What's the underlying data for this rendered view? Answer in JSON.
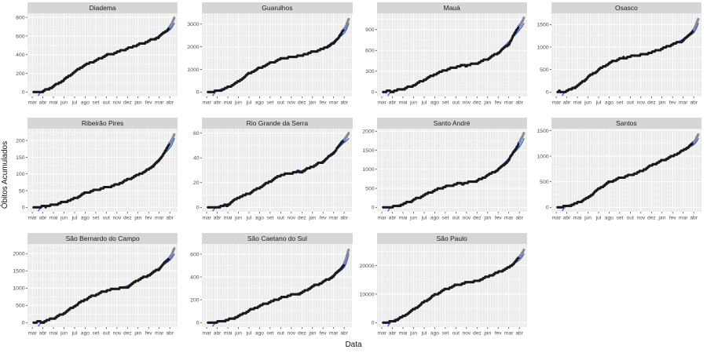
{
  "chart_data": {
    "type": "line",
    "title": "",
    "xlabel": "Data",
    "ylabel": "Óbitos Acumulados",
    "legend": false,
    "grid": true,
    "facet_layout": {
      "rows": 3,
      "cols": 4,
      "order": "row-major",
      "free_y": true
    },
    "x_tick_labels": [
      "mar",
      "abr",
      "mai",
      "jun",
      "jul",
      "ago",
      "set",
      "out",
      "nov",
      "dez",
      "jan",
      "fev",
      "mar",
      "abr"
    ],
    "series_styles": [
      {
        "name": "obitos-acumulados-observados",
        "style": "thick-point-line",
        "color": "#1b1b1b"
      },
      {
        "name": "dados-recentes",
        "style": "thick-point-line",
        "color": "#8a8a8a"
      },
      {
        "name": "tendencia-suavizada",
        "style": "smooth-line",
        "color": "#3366FF"
      }
    ],
    "colors": {
      "panel_bg": "#ebebeb",
      "strip_bg": "#d6d6d6",
      "grid_line": "#ffffff",
      "axis_text": "#4d4d4d",
      "tick_mark": "#333333",
      "points": "#1b1b1b",
      "recent_points": "#8a8a8a",
      "smooth_line": "#3366FF"
    },
    "panels": [
      {
        "name": "Diadema",
        "yticks": [
          0,
          200,
          400,
          600,
          800
        ],
        "values": [
          0,
          5,
          60,
          130,
          215,
          290,
          335,
          395,
          425,
          465,
          505,
          545,
          590,
          690
        ],
        "end_value": 795
      },
      {
        "name": "Guarulhos",
        "yticks": [
          0,
          1000,
          2000,
          3000
        ],
        "values": [
          0,
          30,
          200,
          450,
          820,
          1060,
          1270,
          1450,
          1550,
          1620,
          1760,
          1910,
          2150,
          2750
        ],
        "end_value": 3280
      },
      {
        "name": "Mauá",
        "yticks": [
          0,
          300,
          600,
          900
        ],
        "values": [
          0,
          10,
          45,
          95,
          175,
          255,
          315,
          365,
          385,
          415,
          475,
          565,
          690,
          960
        ],
        "end_value": 1070
      },
      {
        "name": "Osasco",
        "yticks": [
          0,
          500,
          1000,
          1500
        ],
        "values": [
          0,
          20,
          130,
          330,
          490,
          640,
          740,
          790,
          830,
          880,
          960,
          1060,
          1140,
          1380
        ],
        "end_value": 1650
      },
      {
        "name": "Ribeirão Pires",
        "yticks": [
          0,
          50,
          100,
          150,
          200
        ],
        "values": [
          0,
          1,
          8,
          16,
          26,
          43,
          52,
          60,
          68,
          82,
          97,
          113,
          140,
          190
        ],
        "end_value": 222
      },
      {
        "name": "Rio Grande da Serra",
        "yticks": [
          0,
          20,
          40,
          60
        ],
        "values": [
          0,
          0,
          2,
          8,
          11,
          16,
          21,
          26,
          28,
          29,
          33,
          37,
          44,
          55
        ],
        "end_value": 60
      },
      {
        "name": "Santo André",
        "yticks": [
          0,
          500,
          1000,
          1500,
          2000
        ],
        "values": [
          0,
          10,
          80,
          190,
          320,
          440,
          545,
          610,
          640,
          690,
          840,
          990,
          1240,
          1700
        ],
        "end_value": 1950
      },
      {
        "name": "Santos",
        "yticks": [
          0,
          500,
          1000,
          1500
        ],
        "values": [
          0,
          20,
          85,
          185,
          360,
          490,
          570,
          630,
          700,
          820,
          910,
          1000,
          1110,
          1260
        ],
        "end_value": 1450
      },
      {
        "name": "São Bernardo do Campo",
        "yticks": [
          0,
          500,
          1000,
          1500,
          2000
        ],
        "values": [
          0,
          20,
          120,
          270,
          480,
          670,
          810,
          930,
          990,
          1030,
          1240,
          1370,
          1560,
          1890
        ],
        "end_value": 2150
      },
      {
        "name": "São Caetano do Sul",
        "yticks": [
          0,
          200,
          400,
          600
        ],
        "values": [
          0,
          5,
          25,
          55,
          105,
          145,
          180,
          215,
          245,
          260,
          315,
          355,
          405,
          510
        ],
        "end_value": 650
      },
      {
        "name": "São Paulo",
        "yticks": [
          0,
          10000,
          20000
        ],
        "values": [
          0,
          300,
          2100,
          4600,
          7200,
          9700,
          11600,
          13100,
          13900,
          14600,
          16100,
          17600,
          19200,
          22800
        ],
        "end_value": 26000
      }
    ]
  }
}
